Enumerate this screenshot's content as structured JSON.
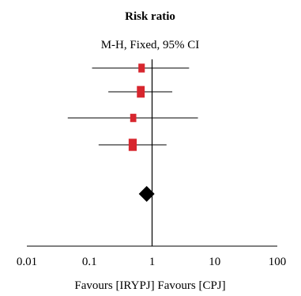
{
  "chart_data": {
    "type": "forest",
    "title": "Risk ratio",
    "subtitle": "M-H, Fixed, 95% CI",
    "x_scale": "log",
    "xlim": [
      0.01,
      100
    ],
    "null_line": 1,
    "tick_values": [
      0.01,
      0.1,
      1,
      10,
      100
    ],
    "tick_labels": [
      "0.01",
      "0.1",
      "1",
      "10",
      "100"
    ],
    "xlabel": "Favours [IRYPJ] Favours [CPJ]",
    "studies": [
      {
        "estimate": 0.68,
        "lower": 0.11,
        "upper": 3.9,
        "weight": 0.3
      },
      {
        "estimate": 0.66,
        "lower": 0.2,
        "upper": 2.1,
        "weight": 0.55
      },
      {
        "estimate": 0.5,
        "lower": 0.045,
        "upper": 5.4,
        "weight": 0.25
      },
      {
        "estimate": 0.49,
        "lower": 0.14,
        "upper": 1.7,
        "weight": 0.6
      }
    ],
    "pooled": {
      "estimate": 0.82
    },
    "colors": {
      "study_marker": "#d7262e",
      "pooled_marker": "#000000",
      "lines": "#000000"
    }
  }
}
